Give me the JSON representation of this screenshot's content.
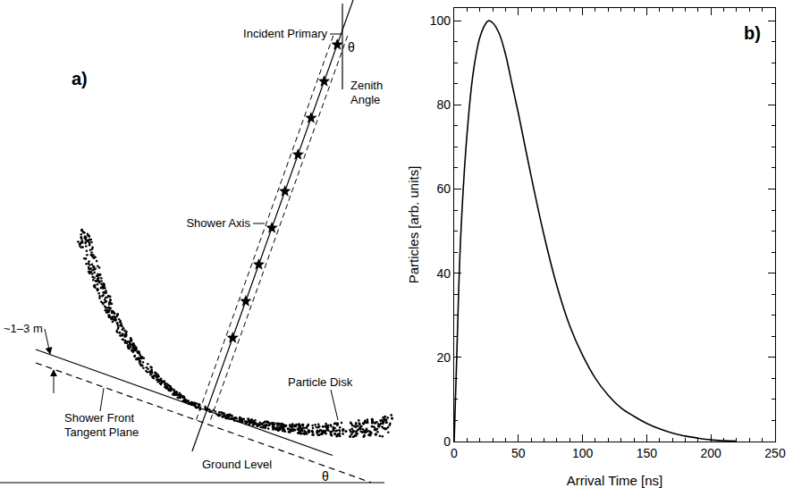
{
  "diagram": {
    "panel_label": "a)",
    "labels": {
      "incident_primary": "Incident Primary",
      "zenith_angle": "Zenith Angle",
      "theta": "θ",
      "shower_axis": "Shower Axis",
      "front_thickness": "~1–3 m",
      "tangent_plane": "Shower Front Tangent Plane",
      "particle_disk": "Particle Disk",
      "ground_level": "Ground Level"
    }
  },
  "chart_data": {
    "type": "line",
    "x": [
      0,
      2,
      5,
      10,
      15,
      20,
      25,
      27,
      30,
      35,
      40,
      45,
      50,
      60,
      70,
      80,
      90,
      100,
      110,
      120,
      130,
      140,
      150,
      160,
      170,
      180,
      190,
      200,
      210,
      220
    ],
    "values": [
      0,
      20,
      48,
      73,
      88,
      96,
      99.5,
      100,
      99.5,
      97,
      92,
      85,
      78,
      63,
      49,
      37,
      27.5,
      20.5,
      15,
      11,
      8,
      6,
      4.3,
      3,
      2,
      1.3,
      0.8,
      0.4,
      0.2,
      0.1
    ],
    "color": "#000000",
    "xlabel": "Arrival Time [ns]",
    "ylabel": "Particles [arb. units]",
    "xlim": [
      0,
      250
    ],
    "xticks": [
      0,
      50,
      100,
      150,
      200,
      250
    ],
    "ylim": [
      0,
      103
    ],
    "yticks": [
      0,
      20,
      40,
      60,
      80,
      100
    ],
    "grid": false,
    "annotations": [
      "b)"
    ]
  }
}
